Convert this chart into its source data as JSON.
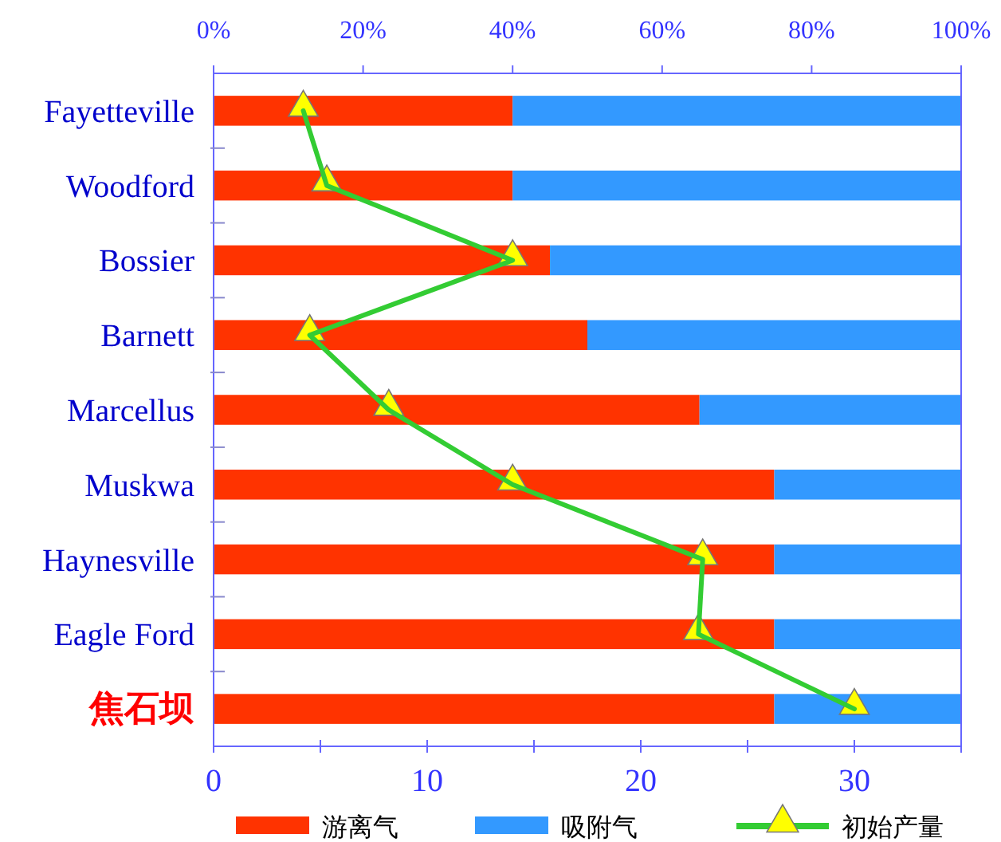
{
  "chart_data": {
    "type": "bar",
    "orientation": "horizontal",
    "stacked": true,
    "categories": [
      "Fayetteville",
      "Woodford",
      "Bossier",
      "Barnett",
      "Marcellus",
      "Muskwa",
      "Haynesville",
      "Eagle Ford",
      "焦石坝"
    ],
    "xlim": [
      0,
      100
    ],
    "xticks": [
      {
        "value": 0,
        "label": "0%"
      },
      {
        "value": 20,
        "label": "20%"
      },
      {
        "value": 40,
        "label": "40%"
      },
      {
        "value": 60,
        "label": "60%"
      },
      {
        "value": 80,
        "label": "80%"
      },
      {
        "value": 100,
        "label": "100%"
      }
    ],
    "x2lim": [
      0,
      35
    ],
    "x2ticks": [
      0,
      {
        "value": 5,
        "label": null
      },
      10,
      {
        "value": 15,
        "label": null
      },
      20,
      {
        "value": 25,
        "label": null
      },
      30,
      {
        "value": 35,
        "label": null
      }
    ],
    "series": [
      {
        "name": "游离气",
        "color": "#ff3300",
        "values": [
          40,
          40,
          45,
          50,
          65,
          75,
          75,
          75,
          75
        ]
      },
      {
        "name": "吸附气",
        "color": "#3399ff",
        "values": [
          60,
          60,
          55,
          50,
          35,
          25,
          25,
          25,
          25
        ]
      },
      {
        "name": "初始产量",
        "type": "line",
        "axis": "x2",
        "color": "#33cc33",
        "marker": "triangle",
        "values": [
          4.2,
          5.3,
          14,
          4.5,
          8.2,
          14,
          22.9,
          22.7,
          30
        ]
      }
    ],
    "legend": "bottom",
    "grid": false
  }
}
